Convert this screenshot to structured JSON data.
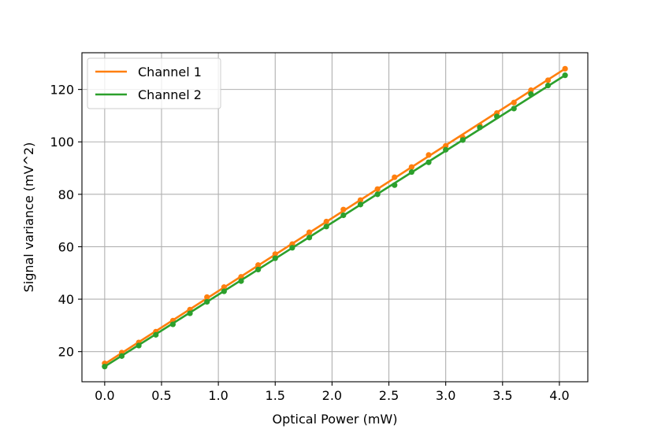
{
  "chart_data": {
    "type": "line",
    "xlabel": "Optical Power (mW)",
    "ylabel": "Signal variance (mV^2)",
    "xlim": [
      -0.2,
      4.25
    ],
    "ylim": [
      8.5,
      134
    ],
    "xticks": [
      0.0,
      0.5,
      1.0,
      1.5,
      2.0,
      2.5,
      3.0,
      3.5,
      4.0
    ],
    "xtick_labels": [
      "0.0",
      "0.5",
      "1.0",
      "1.5",
      "2.0",
      "2.5",
      "3.0",
      "3.5",
      "4.0"
    ],
    "yticks": [
      20,
      40,
      60,
      80,
      100,
      120
    ],
    "ytick_labels": [
      "20",
      "40",
      "60",
      "80",
      "100",
      "120"
    ],
    "grid": true,
    "legend_position": "top-left",
    "x": [
      0.0,
      0.15,
      0.3,
      0.45,
      0.6,
      0.75,
      0.9,
      1.05,
      1.2,
      1.35,
      1.5,
      1.65,
      1.8,
      1.95,
      2.1,
      2.25,
      2.4,
      2.55,
      2.7,
      2.85,
      3.0,
      3.15,
      3.3,
      3.45,
      3.6,
      3.75,
      3.9,
      4.05
    ],
    "series": [
      {
        "name": "Channel 1",
        "color": "#ff7f0e",
        "fit": [
          15.3,
          127.9
        ],
        "points": [
          15.5,
          19.6,
          23.5,
          27.6,
          31.8,
          36.0,
          40.8,
          44.6,
          48.5,
          53.0,
          57.2,
          61.0,
          65.5,
          69.6,
          74.2,
          77.8,
          82.0,
          86.5,
          90.4,
          95.0,
          98.5,
          101.7,
          106.2,
          111.0,
          115.0,
          119.7,
          123.5,
          127.9
        ]
      },
      {
        "name": "Channel 2",
        "color": "#2ca02c",
        "fit": [
          14.3,
          125.4
        ],
        "points": [
          14.3,
          18.3,
          22.3,
          26.4,
          30.4,
          34.6,
          39.0,
          43.0,
          46.9,
          51.3,
          55.6,
          59.6,
          63.5,
          67.7,
          72.0,
          76.1,
          80.0,
          83.5,
          88.5,
          92.2,
          97.0,
          100.7,
          105.5,
          109.7,
          112.7,
          118.2,
          121.5,
          125.4
        ]
      }
    ]
  }
}
